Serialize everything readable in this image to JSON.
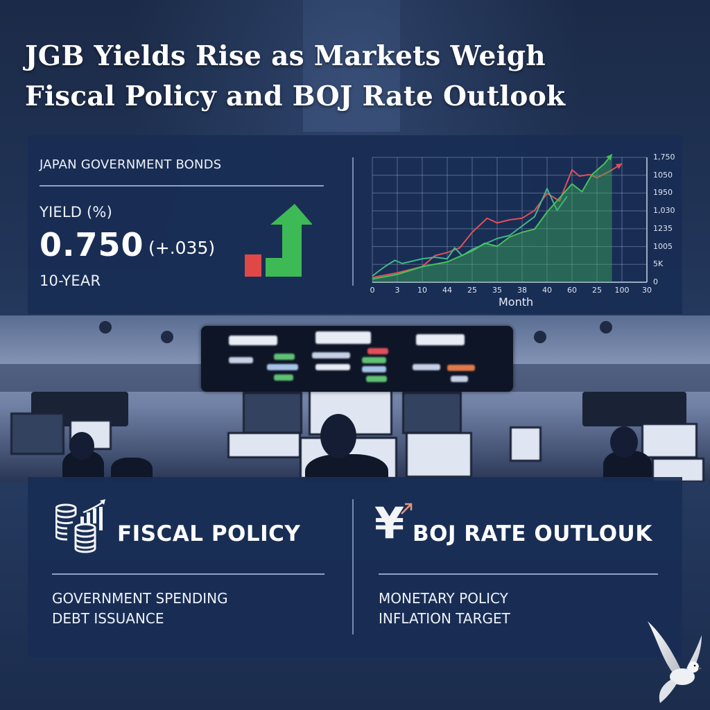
{
  "headline": {
    "line1": "JGB Yields Rise as Markets Weigh",
    "line2": "Fiscal Policy and BOJ Rate Outlook"
  },
  "summary_card": {
    "section_label": "JAPAN GOVERNMENT BONDS",
    "metric_label": "YIELD (%)",
    "value": "0.750",
    "change": "(+.035)",
    "tenor": "10-YEAR",
    "trend_icon": "bar-chart-up-arrow-icon",
    "colors": {
      "down": "#e04848",
      "up": "#3dba55"
    }
  },
  "chart_data": {
    "type": "line",
    "title": "",
    "xlabel": "Month",
    "ylabel": "",
    "x_tick_labels": [
      "0",
      "3",
      "10",
      "44",
      "25",
      "35",
      "38",
      "40",
      "60",
      "25",
      "100",
      "30"
    ],
    "y_tick_labels": [
      "0",
      "5K",
      "1005",
      "1235",
      "1,030",
      "1950",
      "1050",
      "1,750"
    ],
    "grid": true,
    "legend": "none",
    "x_index": [
      0,
      1,
      2,
      3,
      4,
      5,
      6,
      7,
      8,
      9,
      10,
      11
    ],
    "series": [
      {
        "name": "red-line",
        "color": "#e0505a",
        "points": [
          [
            0,
            0.3
          ],
          [
            1,
            0.6
          ],
          [
            2,
            1.0
          ],
          [
            2.5,
            1.7
          ],
          [
            3,
            1.9
          ],
          [
            3.5,
            2.2
          ],
          [
            4,
            3.2
          ],
          [
            4.6,
            4.1
          ],
          [
            5,
            3.8
          ],
          [
            5.5,
            4.0
          ],
          [
            6,
            4.1
          ],
          [
            6.5,
            4.6
          ],
          [
            7,
            5.7
          ],
          [
            7.5,
            5.2
          ],
          [
            8,
            7.2
          ],
          [
            8.3,
            6.8
          ],
          [
            8.7,
            6.9
          ],
          [
            9,
            6.7
          ],
          [
            9.5,
            7.1
          ],
          [
            10,
            7.6
          ]
        ]
      },
      {
        "name": "teal-line",
        "color": "#3fb88a",
        "points": [
          [
            0,
            0.4
          ],
          [
            0.5,
            1.0
          ],
          [
            0.9,
            1.4
          ],
          [
            1.2,
            1.2
          ],
          [
            2,
            1.5
          ],
          [
            2.5,
            1.6
          ],
          [
            3,
            1.5
          ],
          [
            3.3,
            2.2
          ],
          [
            3.6,
            1.7
          ],
          [
            4,
            2.1
          ],
          [
            5,
            2.8
          ],
          [
            5.5,
            3.0
          ],
          [
            6,
            3.6
          ],
          [
            6.5,
            4.2
          ],
          [
            7,
            6.0
          ],
          [
            7.4,
            4.6
          ],
          [
            7.8,
            5.5
          ]
        ]
      },
      {
        "name": "green-area-line",
        "color": "#45c25a",
        "fill": "rgba(60,170,90,0.45)",
        "points": [
          [
            0,
            0.2
          ],
          [
            1,
            0.5
          ],
          [
            2,
            1.0
          ],
          [
            3,
            1.3
          ],
          [
            4,
            2.0
          ],
          [
            4.5,
            2.5
          ],
          [
            5,
            2.3
          ],
          [
            5.5,
            2.9
          ],
          [
            6,
            3.2
          ],
          [
            6.5,
            3.4
          ],
          [
            7,
            4.5
          ],
          [
            8,
            6.3
          ],
          [
            8.4,
            5.8
          ],
          [
            8.8,
            6.9
          ],
          [
            9.3,
            7.6
          ],
          [
            9.6,
            8.2
          ]
        ]
      }
    ],
    "ylim": [
      0,
      8
    ],
    "xlim": [
      0,
      11
    ]
  },
  "fiscal": {
    "title": "FISCAL POLICY",
    "icon": "coins-growth-chart-icon",
    "items": [
      "GOVERNMENT SPENDING",
      "DEBT ISSUANCE"
    ]
  },
  "boj": {
    "title": "BOJ RATE OUTLOUK",
    "icon_glyph": "¥",
    "icon": "yen-up-arrow-icon",
    "items": [
      "MONETARY POLICY",
      "INFLATION TARGET"
    ]
  },
  "decor": {
    "dove": "dove-icon"
  }
}
